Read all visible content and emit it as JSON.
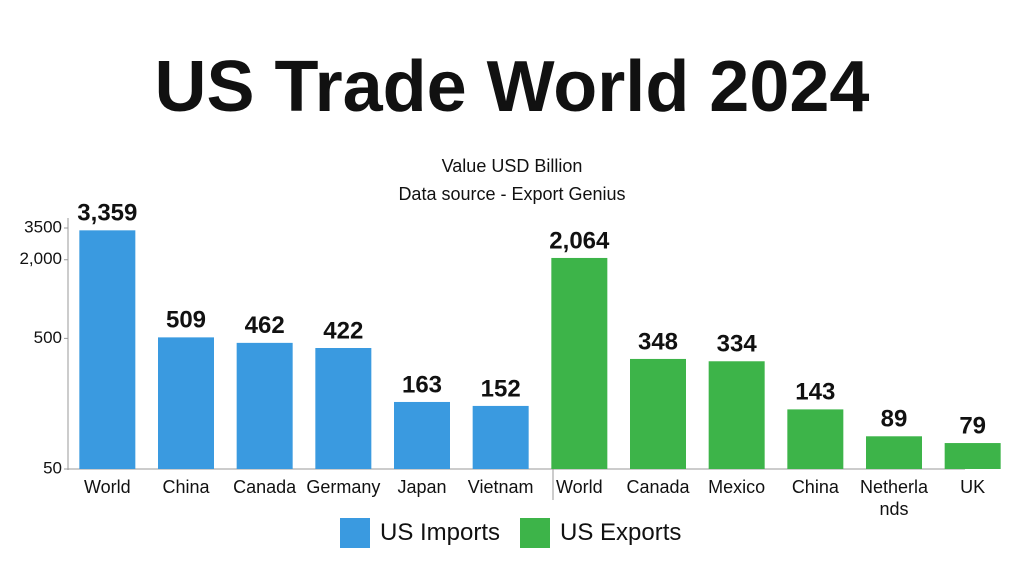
{
  "chart_data": {
    "type": "bar",
    "title": "US Trade World 2024",
    "subtitle": "Value USD Billion",
    "source": "Data source - Export Genius",
    "categories": [
      "World",
      "China",
      "Canada",
      "Germany",
      "Japan",
      "Vietnam",
      "World",
      "Canada",
      "Mexico",
      "China",
      "Netherlands",
      "UK"
    ],
    "series": [
      {
        "name": "US Imports",
        "color": "#3a9ae0",
        "values": [
          3359,
          509,
          462,
          422,
          163,
          152,
          null,
          null,
          null,
          null,
          null,
          null
        ],
        "value_labels": [
          "3,359",
          "509",
          "462",
          "422",
          "163",
          "152",
          null,
          null,
          null,
          null,
          null,
          null
        ]
      },
      {
        "name": "US Exports",
        "color": "#3db449",
        "values": [
          null,
          null,
          null,
          null,
          null,
          null,
          2064,
          348,
          334,
          143,
          89,
          79
        ],
        "value_labels": [
          null,
          null,
          null,
          null,
          null,
          null,
          "2,064",
          "348",
          "334",
          "143",
          "89",
          "79"
        ]
      }
    ],
    "log_scale": true,
    "ylim": [
      50,
      3500
    ],
    "yticks": [
      50,
      500,
      {
        "value": 2000,
        "label": "2,000"
      },
      3500
    ],
    "grid": false,
    "legend": "bottom"
  }
}
